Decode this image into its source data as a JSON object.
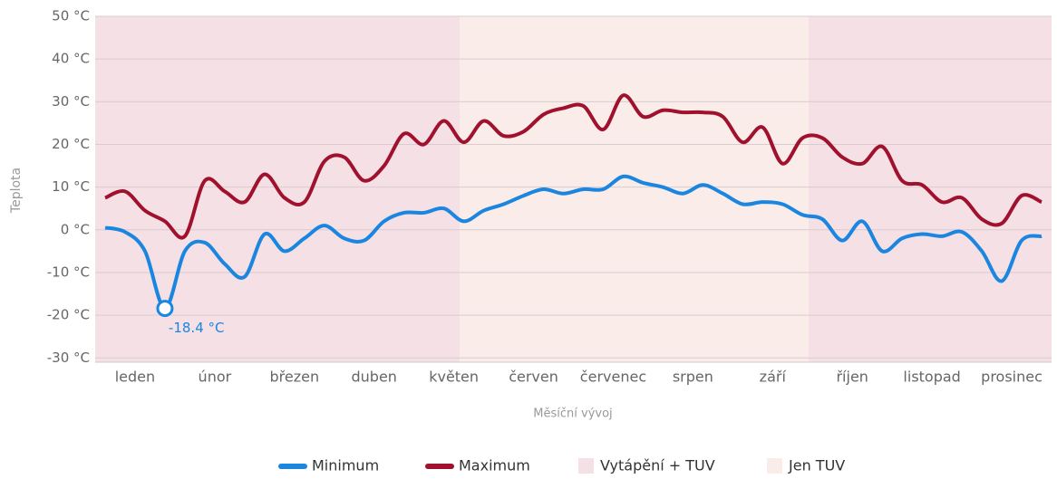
{
  "chart_data": {
    "type": "line",
    "y_label": "Teplota",
    "x_label": "Měsíční vývoj",
    "categories": [
      null,
      null,
      "leden",
      null,
      null,
      null,
      "únor",
      null,
      null,
      null,
      "březen",
      null,
      null,
      null,
      "duben",
      null,
      null,
      null,
      "květen",
      null,
      null,
      null,
      "červen",
      null,
      null,
      null,
      "červenec",
      null,
      null,
      null,
      "srpen",
      null,
      null,
      null,
      "září",
      null,
      null,
      null,
      "říjen",
      null,
      null,
      null,
      "listopad",
      null,
      null,
      null,
      "prosinec",
      null
    ],
    "ylim": [
      -31,
      50
    ],
    "yticks": [
      {
        "value": 50,
        "label": "50 °C"
      },
      {
        "value": 40,
        "label": "40 °C"
      },
      {
        "value": 30,
        "label": "30 °C"
      },
      {
        "value": 20,
        "label": "20 °C"
      },
      {
        "value": 10,
        "label": "10 °C"
      },
      {
        "value": 0,
        "label": "0 °C"
      },
      {
        "value": -10,
        "label": "-10 °C"
      },
      {
        "value": -20,
        "label": "-20 °C"
      },
      {
        "value": -30,
        "label": "-30 °C"
      }
    ],
    "grid": true,
    "series": [
      {
        "name": "Minimum",
        "color": "#1a86e0",
        "values": [
          0.5,
          -0.5,
          -5,
          -18.4,
          -5,
          -3,
          -8,
          -11,
          -1,
          -5,
          -2,
          1,
          -2,
          -2.5,
          2,
          4,
          4,
          5,
          2,
          4.5,
          6,
          8,
          9.5,
          8.5,
          9.5,
          9.5,
          12.5,
          11,
          10,
          8.5,
          10.5,
          8.5,
          6,
          6.5,
          6,
          3.5,
          2.5,
          -2.5,
          2,
          -5,
          -2,
          -1,
          -1.5,
          -0.5,
          -5,
          -12,
          -2.5,
          -1.5
        ],
        "value_labels": [
          null,
          null,
          null,
          "-18.4 °C",
          null,
          null,
          null,
          null,
          null,
          null,
          null,
          null,
          null,
          null,
          null,
          null,
          null,
          null,
          null,
          null,
          null,
          null,
          null,
          null,
          null,
          null,
          null,
          null,
          null,
          null,
          null,
          null,
          null,
          null,
          null,
          null,
          null,
          null,
          null,
          null,
          null,
          null,
          null,
          null,
          null,
          null,
          null,
          null
        ]
      },
      {
        "name": "Maximum",
        "color": "#a0112e",
        "values": [
          7.5,
          9,
          4.5,
          2,
          -1.5,
          11.5,
          9,
          6.5,
          13,
          7.5,
          6.5,
          16,
          17,
          11.5,
          15,
          22.5,
          20,
          25.5,
          20.5,
          25.5,
          22,
          23,
          27,
          28.5,
          29,
          23.5,
          31.5,
          26.5,
          28,
          27.5,
          27.5,
          26.5,
          20.5,
          24,
          15.5,
          21.5,
          21.5,
          17,
          15.5,
          19.5,
          11.5,
          10.5,
          6.5,
          7.5,
          2.5,
          1.5,
          8,
          6.5
        ]
      }
    ],
    "bands": [
      {
        "name": "Vytápění + TUV",
        "color": "#f4e0e5",
        "ranges": [
          [
            0,
            18.3
          ],
          [
            35.8,
            48
          ]
        ]
      },
      {
        "name": "Jen TUV",
        "color": "#faece9",
        "ranges": [
          [
            18.3,
            35.8
          ]
        ]
      }
    ]
  }
}
